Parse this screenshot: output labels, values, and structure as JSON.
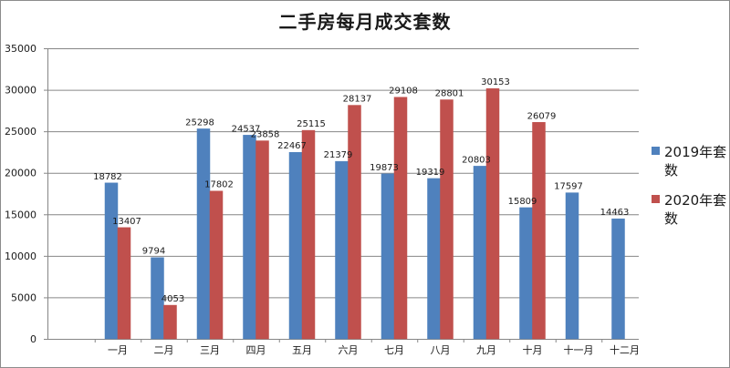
{
  "chart_data": {
    "type": "bar",
    "title": "二手房每月成交套数",
    "categories": [
      "一月",
      "二月",
      "三月",
      "四月",
      "五月",
      "六月",
      "七月",
      "八月",
      "九月",
      "十月",
      "十一月",
      "十二月"
    ],
    "series": [
      {
        "name": "2019年套数",
        "color": "#4f81bd",
        "values": [
          18782,
          9794,
          25298,
          24537,
          22467,
          21379,
          19873,
          19319,
          20803,
          15809,
          17597,
          14463
        ]
      },
      {
        "name": "2020年套数",
        "color": "#c0504d",
        "values": [
          13407,
          4053,
          17802,
          23858,
          25115,
          28137,
          29108,
          28801,
          30153,
          26079,
          null,
          null
        ]
      }
    ],
    "yticks": [
      "0",
      "5000",
      "10000",
      "15000",
      "20000",
      "25000",
      "30000",
      "35000"
    ],
    "ylim": [
      0,
      35000
    ],
    "grid": true,
    "legend_position": "right"
  }
}
